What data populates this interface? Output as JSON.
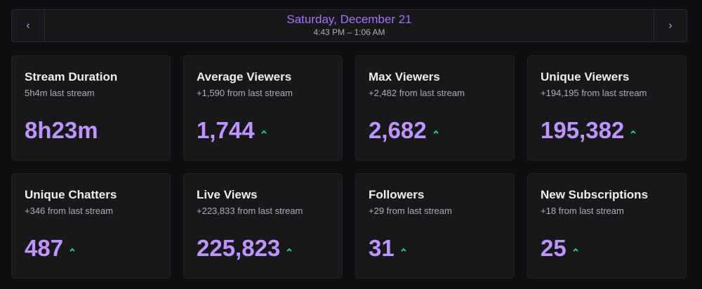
{
  "nav": {
    "prev_icon": "‹",
    "next_icon": "›",
    "date": "Saturday, December 21",
    "time_range": "4:43 PM – 1:06 AM"
  },
  "colors": {
    "accent": "#bf94ff",
    "trend_up": "#00f593",
    "background": "#0e0e10",
    "card": "#18181b"
  },
  "stats": [
    {
      "title": "Stream Duration",
      "sub": "5h4m last stream",
      "value": "8h23m",
      "trend": "none"
    },
    {
      "title": "Average Viewers",
      "sub": "+1,590 from last stream",
      "value": "1,744",
      "trend": "up"
    },
    {
      "title": "Max Viewers",
      "sub": "+2,482 from last stream",
      "value": "2,682",
      "trend": "up"
    },
    {
      "title": "Unique Viewers",
      "sub": "+194,195 from last stream",
      "value": "195,382",
      "trend": "up"
    },
    {
      "title": "Unique Chatters",
      "sub": "+346 from last stream",
      "value": "487",
      "trend": "up"
    },
    {
      "title": "Live Views",
      "sub": "+223,833 from last stream",
      "value": "225,823",
      "trend": "up"
    },
    {
      "title": "Followers",
      "sub": "+29 from last stream",
      "value": "31",
      "trend": "up"
    },
    {
      "title": "New Subscriptions",
      "sub": "+18 from last stream",
      "value": "25",
      "trend": "up"
    }
  ]
}
